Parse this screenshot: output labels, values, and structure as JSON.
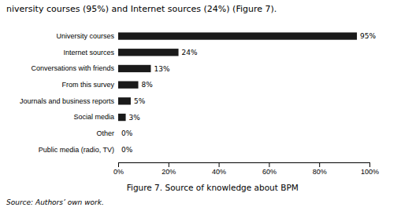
{
  "chart_data": {
    "type": "bar",
    "orientation": "horizontal",
    "title": "Figure 7. Source of knowledge about BPM",
    "annotations": [
      "niversity courses (95%) and Internet sources (24%) (Figure 7).",
      "Source: Authors’ own work."
    ],
    "categories": [
      "Public media (radio, TV)",
      "Other",
      "Social media",
      "Journals and business reports",
      "From this survey",
      "Conversations with friends",
      "Internet sources",
      "University courses"
    ],
    "values": [
      0,
      0,
      3,
      5,
      8,
      13,
      24,
      95
    ],
    "value_labels": [
      "0%",
      "0%",
      "3%",
      "5%",
      "8%",
      "13%",
      "24%",
      "95%"
    ],
    "data_labels": true,
    "color": "#1a1a1a",
    "xlim": [
      0,
      100
    ],
    "xticks": [
      {
        "value": 0,
        "label": "0%"
      },
      {
        "value": 20,
        "label": "20%"
      },
      {
        "value": 40,
        "label": "40%"
      },
      {
        "value": 60,
        "label": "60%"
      },
      {
        "value": 80,
        "label": "80%"
      },
      {
        "value": 100,
        "label": "100%"
      }
    ],
    "grid": false
  }
}
